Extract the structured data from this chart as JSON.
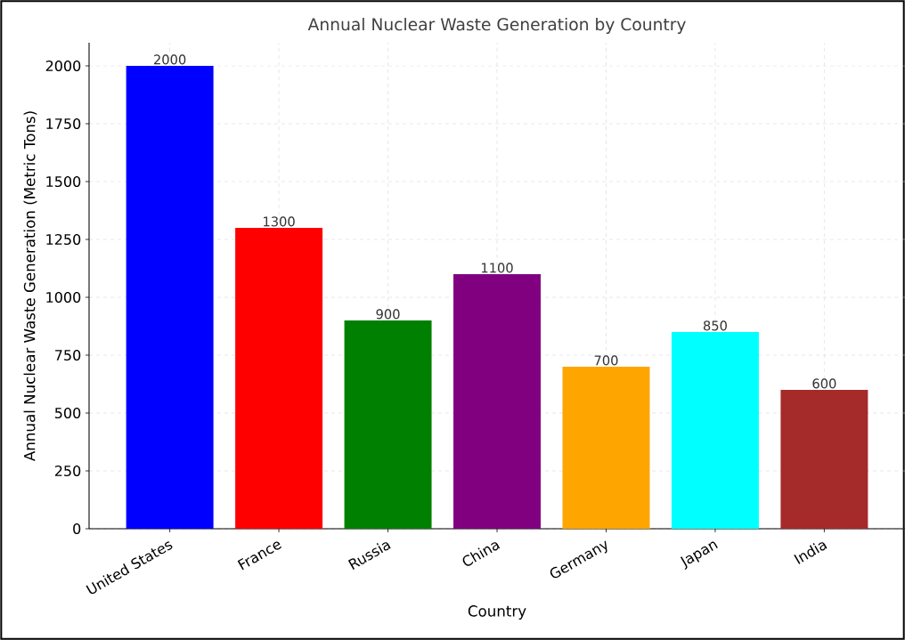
{
  "chart_data": {
    "type": "bar",
    "title": "Annual Nuclear Waste Generation by Country",
    "xlabel": "Country",
    "ylabel": "Annual Nuclear Waste Generation (Metric Tons)",
    "categories": [
      "United States",
      "France",
      "Russia",
      "China",
      "Germany",
      "Japan",
      "India"
    ],
    "values": [
      2000,
      1300,
      900,
      1100,
      700,
      850,
      600
    ],
    "colors": [
      "#0000ff",
      "#ff0000",
      "#008000",
      "#800080",
      "#ffa500",
      "#00ffff",
      "#a52a2a"
    ],
    "ylim": [
      0,
      2100
    ],
    "yticks": [
      0,
      250,
      500,
      750,
      1000,
      1250,
      1500,
      1750,
      2000
    ],
    "grid": true,
    "data_labels": true
  }
}
